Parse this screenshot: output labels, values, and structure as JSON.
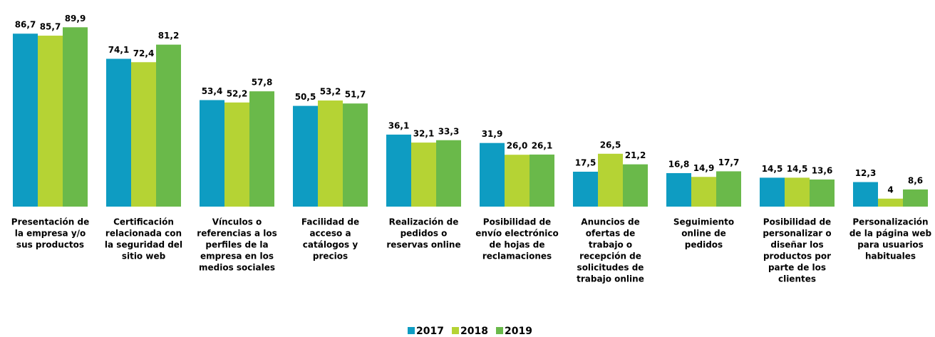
{
  "chart_data": {
    "type": "bar",
    "categories": [
      [
        "Presentación de",
        "la empresa  y/o",
        "sus productos"
      ],
      [
        "Certificación",
        "relacionada con",
        "la seguridad del",
        "sitio web"
      ],
      [
        "Vínculos o",
        "referencias a los",
        "perfiles de la",
        "empresa en los",
        "medios sociales"
      ],
      [
        "Facilidad de",
        "acceso a",
        "catálogos y",
        "precios"
      ],
      [
        "Realización de",
        "pedidos o",
        "reservas online"
      ],
      [
        "Posibilidad de",
        "envío electrónico",
        "de hojas de",
        "reclamaciones"
      ],
      [
        "Anuncios de",
        "ofertas de",
        "trabajo o",
        "recepción de",
        "solicitudes de",
        "trabajo online"
      ],
      [
        "Seguimiento",
        "online de",
        "pedidos"
      ],
      [
        "Posibilidad de",
        "personalizar o",
        "diseñar los",
        "productos por",
        "parte de los",
        "clientes"
      ],
      [
        "Personalización",
        "de la página web",
        "para usuarios",
        "habituales"
      ]
    ],
    "series": [
      {
        "name": "2017",
        "color": "#0e9cc2",
        "values": [
          86.7,
          74.1,
          53.4,
          50.5,
          36.1,
          31.9,
          17.5,
          16.8,
          14.5,
          12.3
        ],
        "value_labels": [
          "86,7",
          "74,1",
          "53,4",
          "50,5",
          "36,1",
          "31,9",
          "17,5",
          "16,8",
          "14,5",
          "12,3"
        ]
      },
      {
        "name": "2018",
        "color": "#b5d334",
        "values": [
          85.7,
          72.4,
          52.2,
          53.2,
          32.1,
          26.0,
          26.5,
          14.9,
          14.5,
          4
        ],
        "value_labels": [
          "85,7",
          "72,4",
          "52,2",
          "53,2",
          "32,1",
          "26,0",
          "26,5",
          "14,9",
          "14,5",
          "4"
        ]
      },
      {
        "name": "2019",
        "color": "#6ab94a",
        "values": [
          89.9,
          81.2,
          57.8,
          51.7,
          33.3,
          26.1,
          21.2,
          17.7,
          13.6,
          8.6
        ],
        "value_labels": [
          "89,9",
          "81,2",
          "57,8",
          "51,7",
          "33,3",
          "26,1",
          "21,2",
          "17,7",
          "13,6",
          "8,6"
        ]
      }
    ],
    "ylim": [
      0,
      90
    ],
    "legend": "bottom"
  }
}
